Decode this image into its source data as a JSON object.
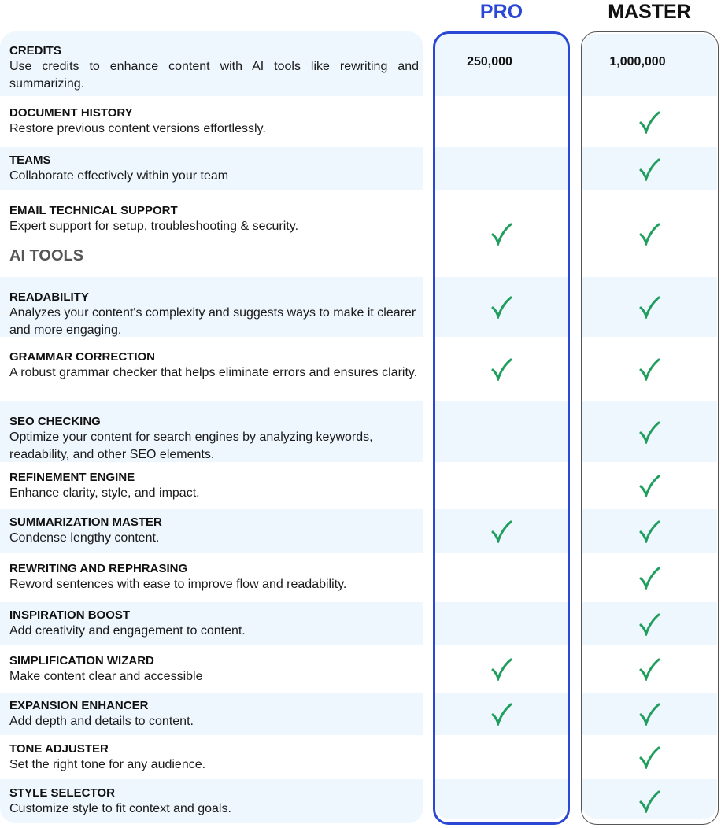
{
  "plans": {
    "pro": "PRO",
    "master": "MASTER"
  },
  "colors": {
    "pro_accent": "#2a48d4",
    "row_highlight": "#eef7fe",
    "check": "#1f9e5e"
  },
  "section_ai_tools": "AI TOOLS",
  "rows": [
    {
      "title": "CREDITS",
      "desc": "Use credits to enhance content with AI tools like rewriting and summarizing.",
      "pro": "250,000",
      "master": "1,000,000"
    },
    {
      "title": "DOCUMENT HISTORY",
      "desc": "Restore previous content versions effortlessly.",
      "pro": false,
      "master": true
    },
    {
      "title": "TEAMS",
      "desc": "Collaborate effectively within your team",
      "pro": false,
      "master": true
    },
    {
      "title": "EMAIL TECHNICAL SUPPORT",
      "desc": "Expert support for setup, troubleshooting & security.",
      "pro": true,
      "master": true
    },
    {
      "title": "READABILITY",
      "desc": "Analyzes your content's complexity and suggests ways to make it clearer and more engaging.",
      "pro": true,
      "master": true
    },
    {
      "title": "GRAMMAR CORRECTION",
      "desc": "A robust grammar checker that helps eliminate errors and ensures clarity.",
      "pro": true,
      "master": true
    },
    {
      "title": "SEO CHECKING",
      "desc": "Optimize your content for search engines by analyzing keywords, readability, and other SEO elements.",
      "pro": false,
      "master": true
    },
    {
      "title": "REFINEMENT ENGINE",
      "desc": "Enhance clarity, style, and impact.",
      "pro": false,
      "master": true
    },
    {
      "title": "SUMMARIZATION MASTER",
      "desc": "Condense lengthy content.",
      "pro": true,
      "master": true
    },
    {
      "title": "REWRITING AND REPHRASING",
      "desc": "Reword sentences with ease to improve flow and readability.",
      "pro": false,
      "master": true
    },
    {
      "title": "INSPIRATION BOOST",
      "desc": "Add creativity and engagement to content.",
      "pro": false,
      "master": true
    },
    {
      "title": "SIMPLIFICATION WIZARD",
      "desc": "Make content clear and accessible",
      "pro": true,
      "master": true
    },
    {
      "title": "EXPANSION ENHANCER",
      "desc": "Add depth and details to content.",
      "pro": true,
      "master": true
    },
    {
      "title": "TONE ADJUSTER",
      "desc": "Set the right tone for any audience.",
      "pro": false,
      "master": true
    },
    {
      "title": "STYLE SELECTOR",
      "desc": "Customize style to fit context and goals.",
      "pro": false,
      "master": true
    }
  ]
}
